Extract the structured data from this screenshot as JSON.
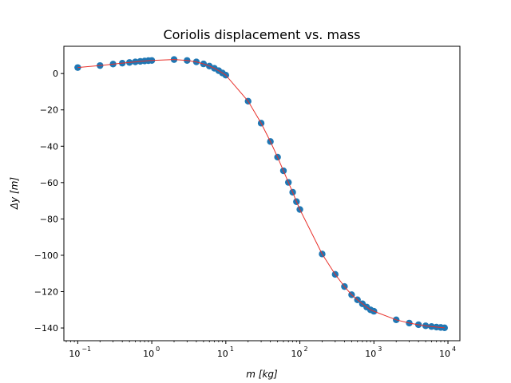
{
  "chart_data": {
    "type": "scatter",
    "title": "Coriolis displacement vs. mass",
    "xlabel": "m [kg]",
    "ylabel": "Δy [m]",
    "xscale": "log",
    "xlim": [
      0.065,
      14500
    ],
    "ylim": [
      -147,
      15
    ],
    "grid": false,
    "x_ticks": [
      {
        "base": "10",
        "exp": "−1",
        "value": 0.1
      },
      {
        "base": "10",
        "exp": "0",
        "value": 1
      },
      {
        "base": "10",
        "exp": "1",
        "value": 10
      },
      {
        "base": "10",
        "exp": "2",
        "value": 100
      },
      {
        "base": "10",
        "exp": "3",
        "value": 1000
      },
      {
        "base": "10",
        "exp": "4",
        "value": 10000
      }
    ],
    "y_ticks": [
      {
        "label": "0",
        "value": 0
      },
      {
        "label": "−20",
        "value": -20
      },
      {
        "label": "−40",
        "value": -40
      },
      {
        "label": "−60",
        "value": -60
      },
      {
        "label": "−80",
        "value": -80
      },
      {
        "label": "−100",
        "value": -100
      },
      {
        "label": "−120",
        "value": -120
      },
      {
        "label": "−140",
        "value": -140
      }
    ],
    "colors": {
      "markers": "#1f77b4",
      "line": "#e8302a"
    },
    "series": [
      {
        "x": [
          0.1,
          0.2,
          0.3,
          0.4,
          0.5,
          0.6,
          0.7,
          0.8,
          0.9,
          1,
          2,
          3,
          4,
          5,
          6,
          7,
          8,
          9,
          10,
          20,
          30,
          40,
          50,
          60,
          70,
          80,
          90,
          100,
          200,
          300,
          400,
          500,
          600,
          700,
          800,
          900,
          1000,
          2000,
          3000,
          4000,
          5000,
          6000,
          7000,
          8000,
          9000
        ],
        "y": [
          3.3,
          4.4,
          5.2,
          5.7,
          6.1,
          6.4,
          6.7,
          6.9,
          7.1,
          7.2,
          7.7,
          7.2,
          6.4,
          5.3,
          4.1,
          2.9,
          1.6,
          0.3,
          -0.9,
          -15.2,
          -27.3,
          -37.4,
          -46.0,
          -53.5,
          -59.9,
          -65.3,
          -70.5,
          -74.8,
          -99.3,
          -110.5,
          -117.2,
          -121.7,
          -124.5,
          -126.7,
          -128.5,
          -130.0,
          -130.8,
          -135.5,
          -137.3,
          -138.2,
          -138.8,
          -139.2,
          -139.5,
          -139.7,
          -139.9
        ]
      }
    ]
  }
}
